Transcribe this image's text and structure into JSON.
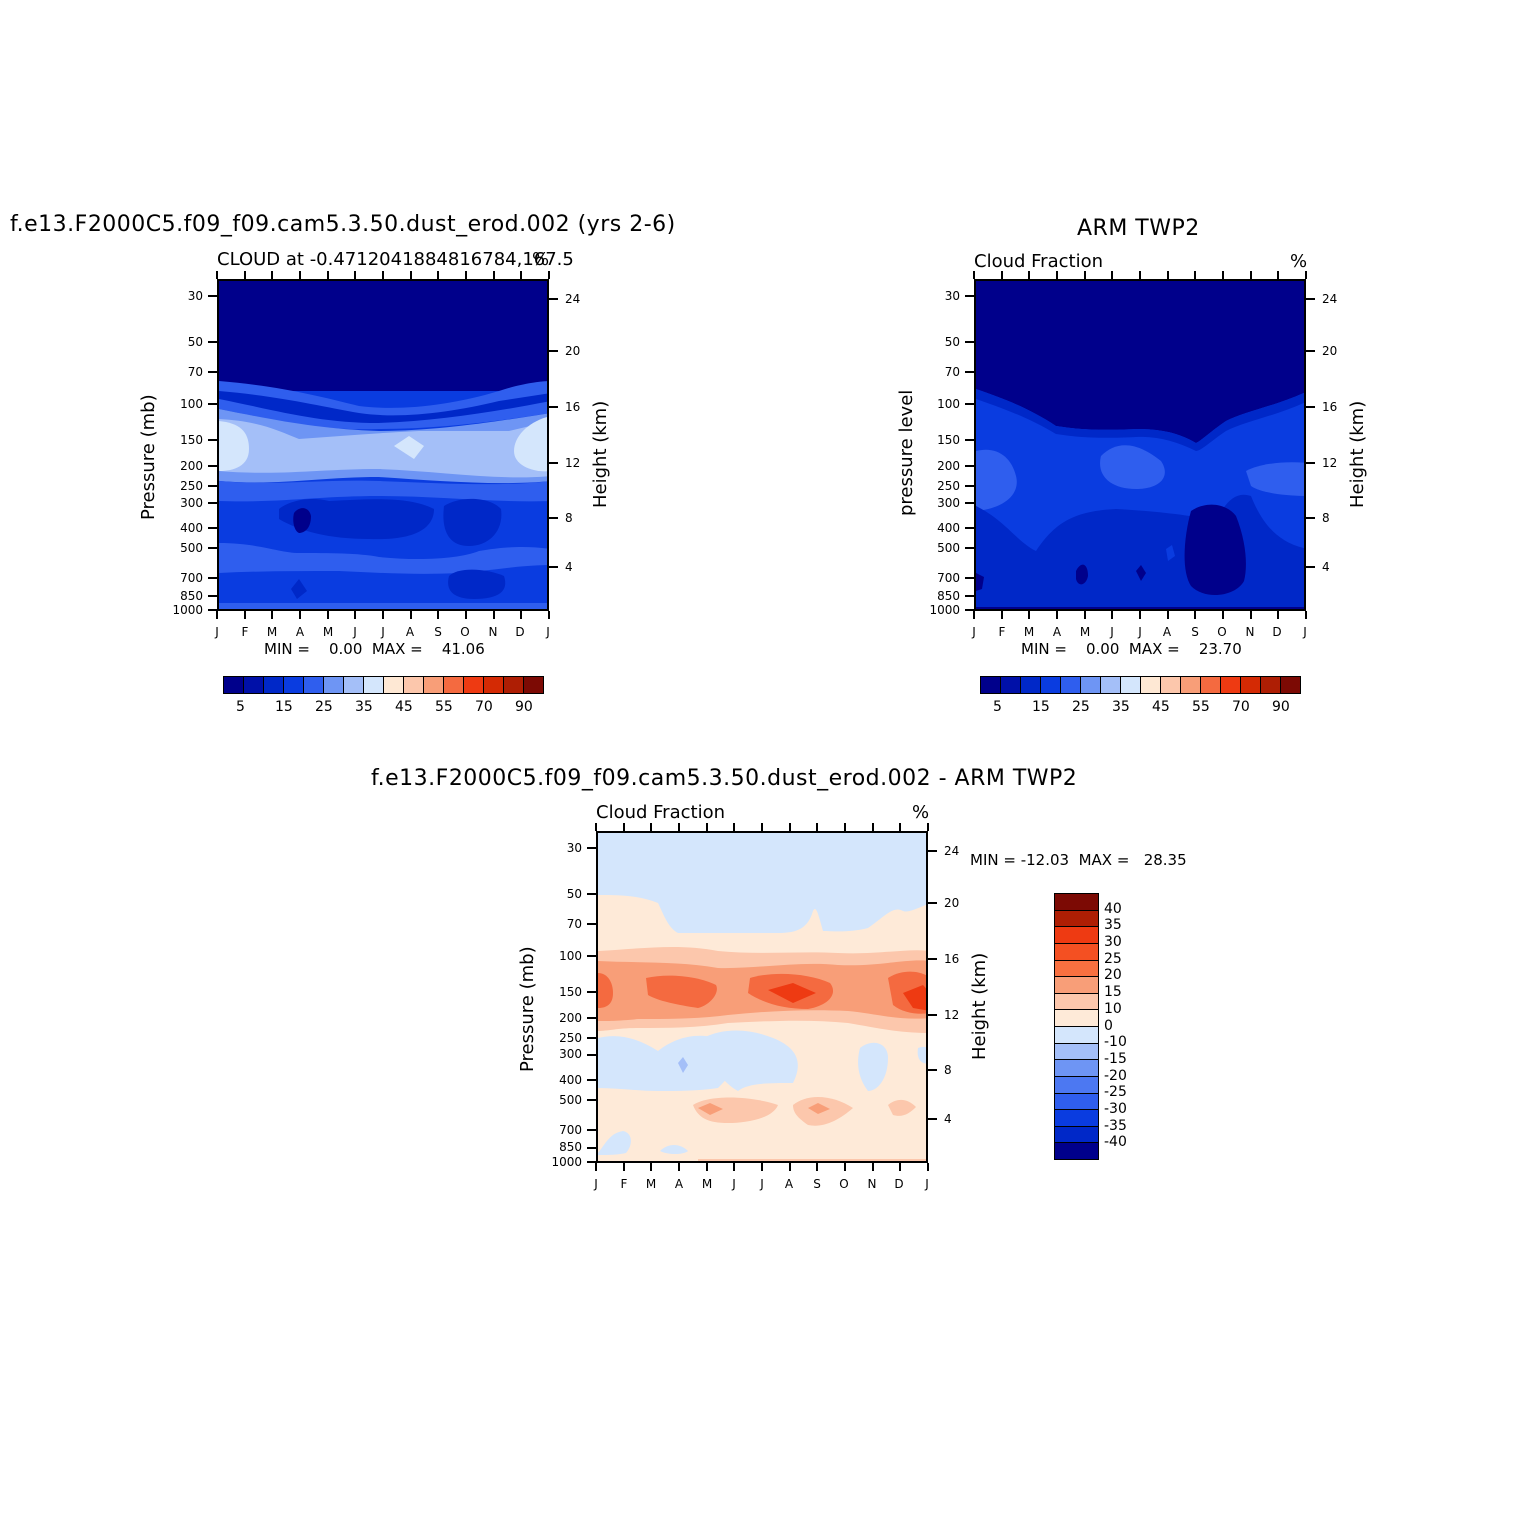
{
  "chart_data": [
    {
      "type": "heatmap",
      "title": "f.e13.F2000C5.f09_f09.cam5.3.50.dust_erod.002 (yrs 2-6)",
      "subtitle_left": "CLOUD at -0.4712041884816784,167.5",
      "subtitle_right": "%",
      "ylabel": "Pressure (mb)",
      "y2label": "Height (km)",
      "minmax_text": "MIN =    0.00  MAX =    41.06",
      "min": 0.0,
      "max": 41.06
    },
    {
      "type": "heatmap",
      "title": "ARM TWP2",
      "subtitle_left": "Cloud Fraction",
      "subtitle_right": "%",
      "ylabel": "pressure level",
      "y2label": "Height (km)",
      "minmax_text": "MIN =    0.00  MAX =    23.70",
      "min": 0.0,
      "max": 23.7
    },
    {
      "type": "heatmap",
      "title": "f.e13.F2000C5.f09_f09.cam5.3.50.dust_erod.002 - ARM TWP2",
      "subtitle_left": "Cloud Fraction",
      "subtitle_right": "%",
      "ylabel": "Pressure (mb)",
      "y2label": "Height (km)",
      "minmax_text": "MIN = -12.03  MAX =   28.35",
      "min": -12.03,
      "max": 28.35
    }
  ],
  "axes": {
    "months": [
      "J",
      "F",
      "M",
      "A",
      "M",
      "J",
      "J",
      "A",
      "S",
      "O",
      "N",
      "D",
      "J"
    ],
    "pressure_ticks": [
      "30",
      "50",
      "70",
      "100",
      "150",
      "200",
      "250",
      "300",
      "400",
      "500",
      "700",
      "850",
      "1000"
    ],
    "height_ticks": [
      "24",
      "20",
      "16",
      "12",
      "8",
      "4"
    ]
  },
  "colorbar_abs": {
    "colors": [
      "#00008B",
      "#0010A8",
      "#0028C8",
      "#0A3CE0",
      "#2F5EEE",
      "#6E95F4",
      "#A4BFF8",
      "#D4E6FC",
      "#FEE8D4",
      "#FCC7AC",
      "#F89E78",
      "#F46A40",
      "#EE3A12",
      "#D42A04",
      "#AE1E04",
      "#7C0A04"
    ],
    "labels": [
      "5",
      "15",
      "25",
      "35",
      "45",
      "55",
      "70",
      "90"
    ]
  },
  "colorbar_diff": {
    "colors": [
      "#7C0A04",
      "#AE1E04",
      "#EE3A12",
      "#F45022",
      "#F87040",
      "#F89E78",
      "#FCC7AC",
      "#FEEAD8",
      "#D4E6FC",
      "#A4BFF8",
      "#6E95F4",
      "#4C78F2",
      "#2F5EEE",
      "#0A3CE0",
      "#0028C8",
      "#00008B"
    ],
    "labels": [
      "40",
      "35",
      "30",
      "25",
      "20",
      "15",
      "10",
      "0",
      "-10",
      "-15",
      "-20",
      "-25",
      "-30",
      "-35",
      "-40"
    ]
  }
}
